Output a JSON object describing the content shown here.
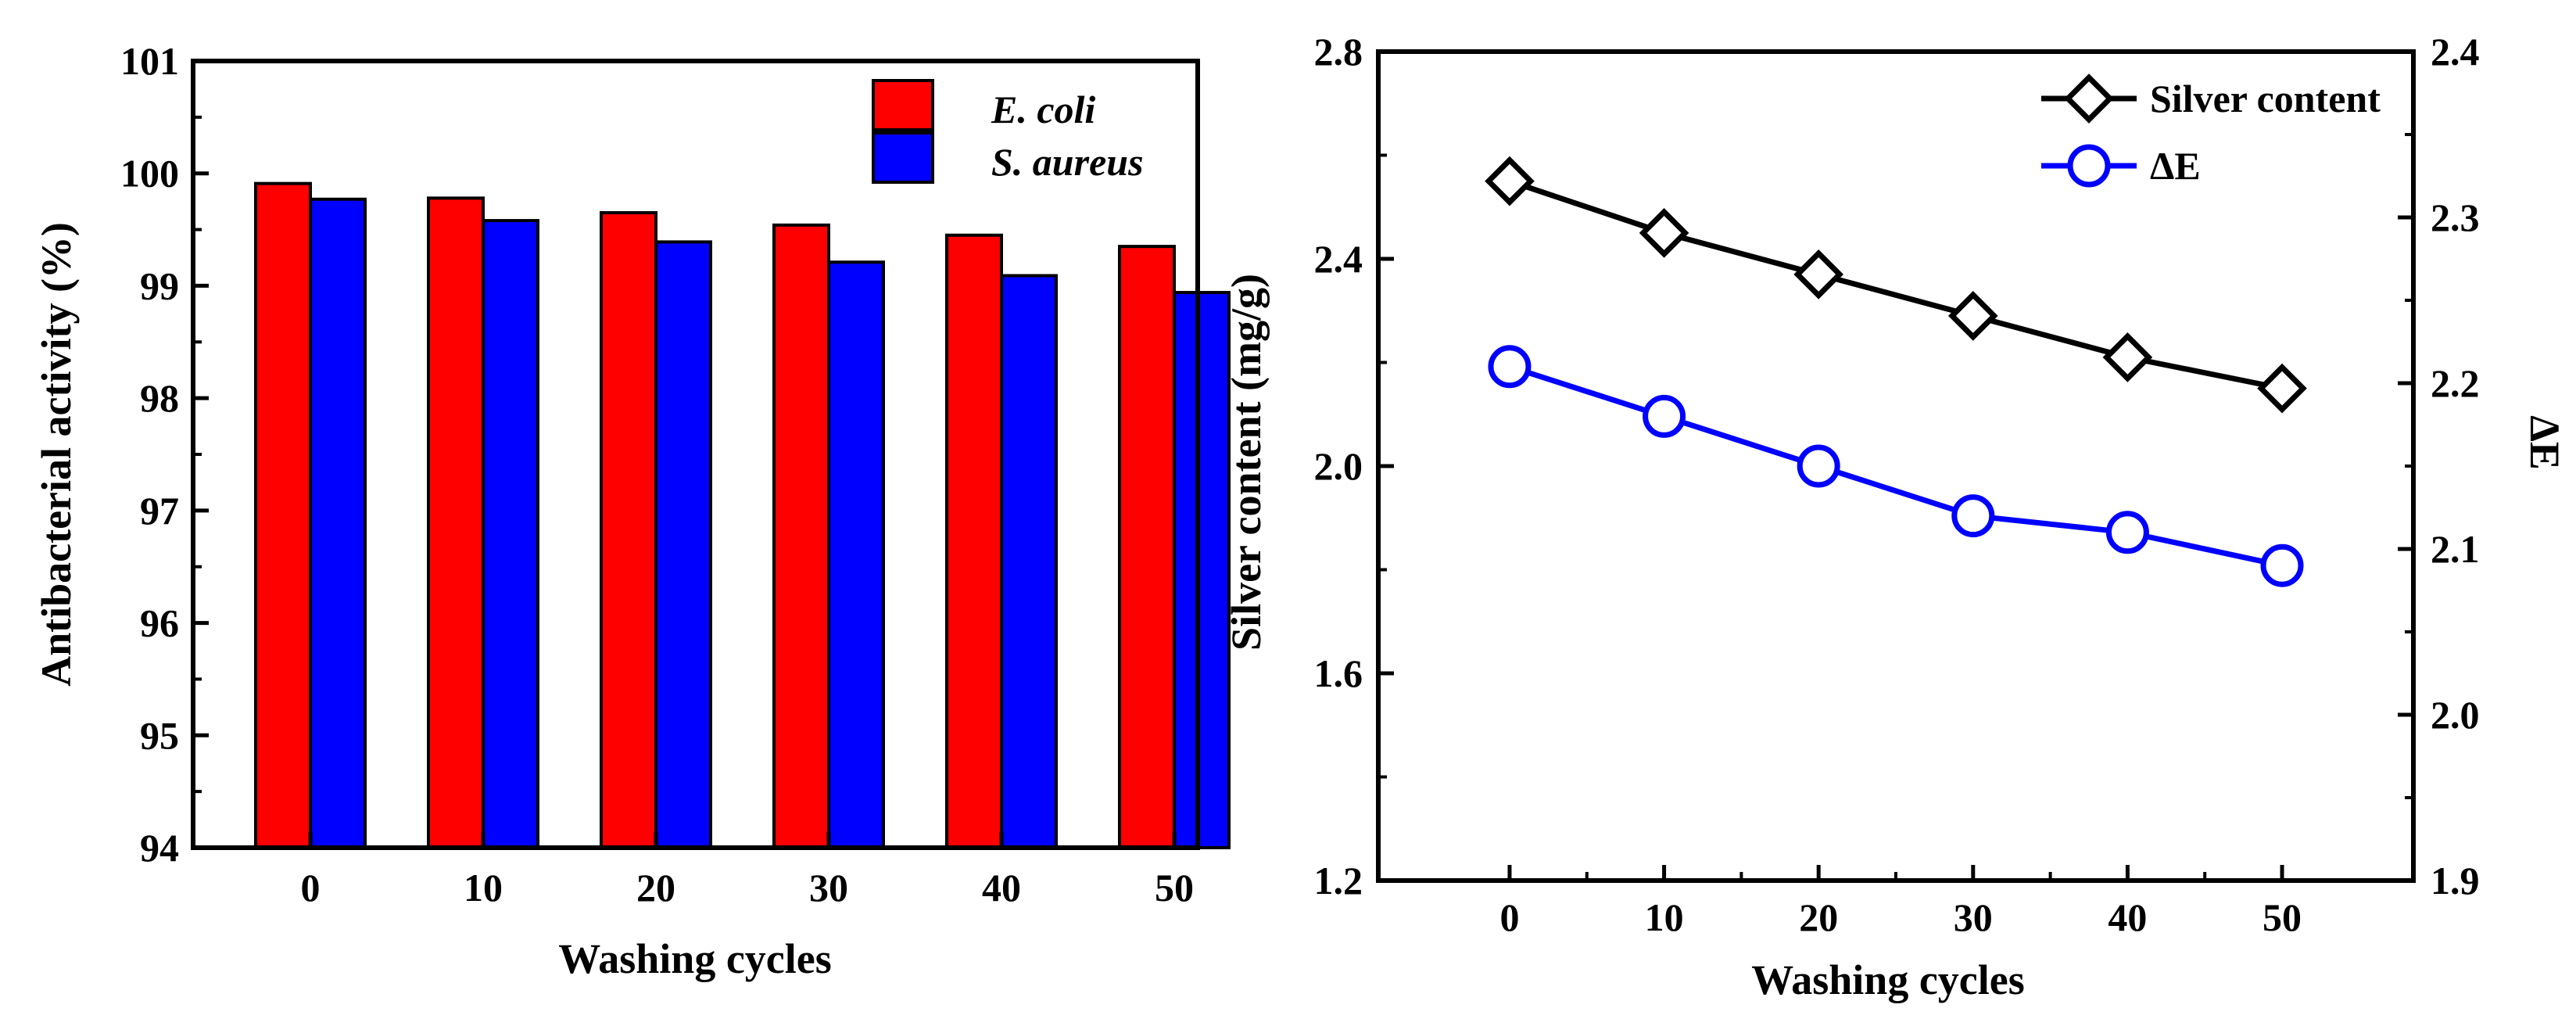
{
  "chart_data": [
    {
      "type": "bar",
      "xlabel": "Washing cycles",
      "ylabel": "Antibacterial activity (%)",
      "ylim": [
        94,
        101
      ],
      "yticks": [
        "94",
        "95",
        "96",
        "97",
        "98",
        "99",
        "100",
        "101"
      ],
      "categories": [
        "0",
        "10",
        "20",
        "30",
        "40",
        "50"
      ],
      "series": [
        {
          "name": "E. coli",
          "color": "#ff0000",
          "values": [
            99.91,
            99.78,
            99.65,
            99.54,
            99.45,
            99.35
          ]
        },
        {
          "name": "S. aureus",
          "color": "#0000ff",
          "values": [
            99.77,
            99.58,
            99.39,
            99.21,
            99.09,
            98.94
          ]
        }
      ],
      "legend": "top-right"
    },
    {
      "type": "line",
      "xlabel": "Washing cycles",
      "ylabel_left": "Silver content (mg/g)",
      "ylabel_right": "ΔE",
      "x": [
        0,
        10,
        20,
        30,
        40,
        50
      ],
      "xticks": [
        "0",
        "10",
        "20",
        "30",
        "40",
        "50"
      ],
      "xlim": [
        -8.5,
        58.5
      ],
      "ylim_left": [
        1.2,
        2.8
      ],
      "yticks_left": [
        "1.2",
        "1.6",
        "2.0",
        "2.4",
        "2.8"
      ],
      "ylim_right": [
        1.9,
        2.4
      ],
      "yticks_right": [
        "1.9",
        "2.0",
        "2.1",
        "2.2",
        "2.3",
        "2.4"
      ],
      "series": [
        {
          "name": "Silver content",
          "axis": "left",
          "marker": "diamond",
          "color": "#000000",
          "values": [
            2.55,
            2.45,
            2.37,
            2.29,
            2.21,
            2.15
          ]
        },
        {
          "name": "ΔE",
          "axis": "right",
          "marker": "circle",
          "color": "#0000ff",
          "values": [
            2.21,
            2.18,
            2.15,
            2.12,
            2.11,
            2.09
          ]
        }
      ],
      "legend": "top-right"
    }
  ]
}
